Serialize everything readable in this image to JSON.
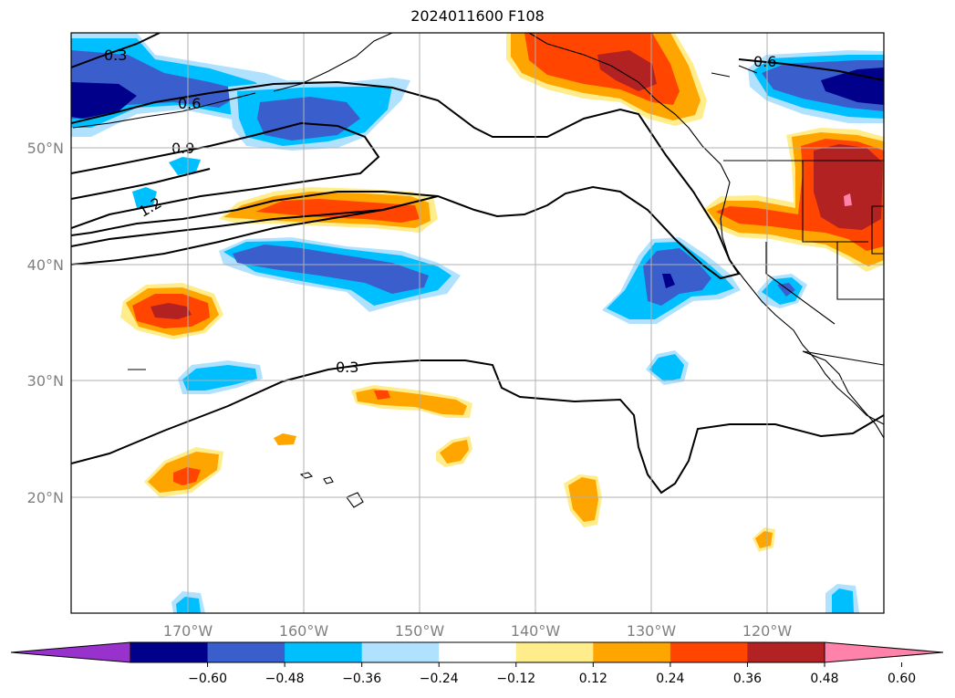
{
  "title": "2024011600 F108",
  "map": {
    "lat_labels": [
      "50°N",
      "40°N",
      "30°N",
      "20°N"
    ],
    "lon_labels": [
      "170°W",
      "160°W",
      "150°W",
      "140°W",
      "130°W",
      "120°W"
    ],
    "contour_labels": [
      "0.3",
      "0.6",
      "0.9",
      "1.2",
      "0.3",
      "0.6"
    ],
    "gridlines": true
  },
  "colorbar": {
    "ticks": [
      "−0.60",
      "−0.48",
      "−0.36",
      "−0.24",
      "−0.12",
      "0.12",
      "0.24",
      "0.36",
      "0.48",
      "0.60"
    ],
    "colors": [
      "#9932cc",
      "#00008b",
      "#3a5fcd",
      "#00bfff",
      "#b0e2ff",
      "#ffffff",
      "#ffec8b",
      "#ffa500",
      "#ff4500",
      "#b22222",
      "#ff82ab"
    ]
  }
}
